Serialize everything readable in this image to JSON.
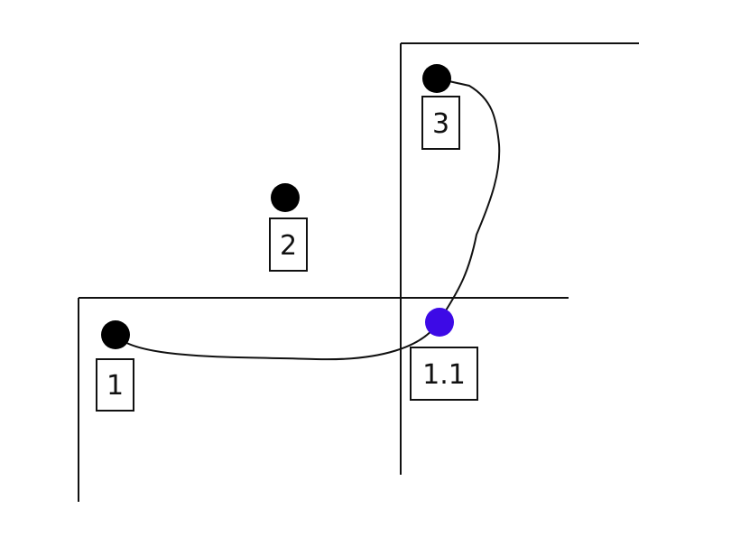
{
  "labels": {
    "one": "1",
    "two": "2",
    "three": "3",
    "one_one": "1.1"
  },
  "colors": {
    "line": "#111111",
    "node": "#000000",
    "highlight_node": "#3d0ae6",
    "background": "#ffffff"
  }
}
